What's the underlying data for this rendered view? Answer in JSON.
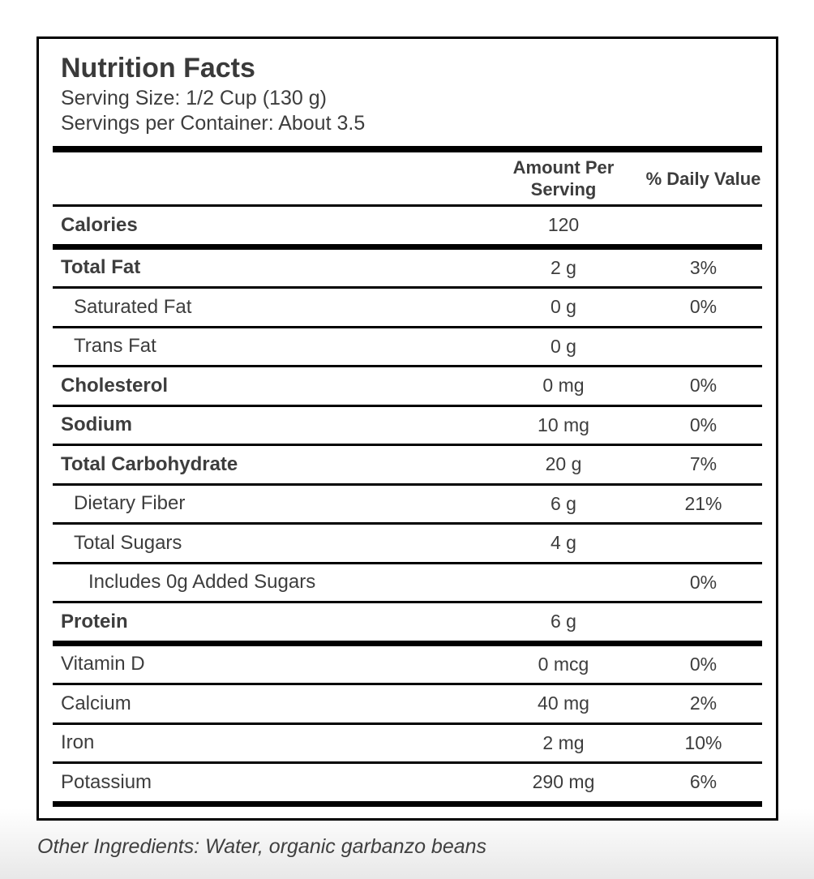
{
  "colors": {
    "text": "#3d3d3d",
    "rule": "#000000",
    "card_background": "#ffffff",
    "page_background_bottom": "#e8e8e8"
  },
  "label": {
    "title": "Nutrition Facts",
    "serving_size": "Serving Size: 1/2 Cup (130 g)",
    "servings_per_container": "Servings per Container: About 3.5",
    "columns": {
      "amount": "Amount Per Serving",
      "daily_value": "% Daily Value"
    },
    "rows": [
      {
        "name": "Calories",
        "amount": "120",
        "daily_value": "",
        "bold": true,
        "indent": 0,
        "divider_below": "thick"
      },
      {
        "name": "Total Fat",
        "amount": "2 g",
        "daily_value": "3%",
        "bold": true,
        "indent": 0,
        "divider_below": "thin"
      },
      {
        "name": "Saturated Fat",
        "amount": "0 g",
        "daily_value": "0%",
        "bold": false,
        "indent": 1,
        "divider_below": "thin"
      },
      {
        "name": "Trans Fat",
        "amount": "0 g",
        "daily_value": "",
        "bold": false,
        "indent": 1,
        "divider_below": "thin"
      },
      {
        "name": "Cholesterol",
        "amount": "0 mg",
        "daily_value": "0%",
        "bold": true,
        "indent": 0,
        "divider_below": "thin"
      },
      {
        "name": "Sodium",
        "amount": "10 mg",
        "daily_value": "0%",
        "bold": true,
        "indent": 0,
        "divider_below": "thin"
      },
      {
        "name": "Total Carbohydrate",
        "amount": "20 g",
        "daily_value": "7%",
        "bold": true,
        "indent": 0,
        "divider_below": "thin"
      },
      {
        "name": "Dietary Fiber",
        "amount": "6 g",
        "daily_value": "21%",
        "bold": false,
        "indent": 1,
        "divider_below": "thin"
      },
      {
        "name": "Total Sugars",
        "amount": "4 g",
        "daily_value": "",
        "bold": false,
        "indent": 1,
        "divider_below": "thin"
      },
      {
        "name": "Includes 0g Added Sugars",
        "amount": "",
        "daily_value": "0%",
        "bold": false,
        "indent": 2,
        "divider_below": "thin"
      },
      {
        "name": "Protein",
        "amount": "6 g",
        "daily_value": "",
        "bold": true,
        "indent": 0,
        "divider_below": "thick"
      },
      {
        "name": "Vitamin D",
        "amount": "0 mcg",
        "daily_value": "0%",
        "bold": false,
        "indent": 0,
        "divider_below": "thin"
      },
      {
        "name": "Calcium",
        "amount": "40 mg",
        "daily_value": "2%",
        "bold": false,
        "indent": 0,
        "divider_below": "thin"
      },
      {
        "name": "Iron",
        "amount": "2 mg",
        "daily_value": "10%",
        "bold": false,
        "indent": 0,
        "divider_below": "thin"
      },
      {
        "name": "Potassium",
        "amount": "290 mg",
        "daily_value": "6%",
        "bold": false,
        "indent": 0,
        "divider_below": "thick"
      }
    ],
    "footnote": "Other Ingredients: Water, organic garbanzo beans"
  }
}
